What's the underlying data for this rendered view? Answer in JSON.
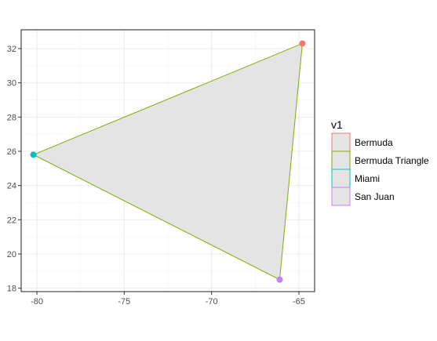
{
  "chart_data": {
    "type": "scatter",
    "title": "",
    "xlabel": "",
    "ylabel": "",
    "xlim": [
      -80.9,
      -64.1
    ],
    "ylim": [
      17.8,
      33.1
    ],
    "x_ticks": [
      -80,
      -75,
      -70,
      -65
    ],
    "x_tick_labels": [
      "-80",
      "-75",
      "-70",
      "-65"
    ],
    "y_ticks": [
      18,
      20,
      22,
      24,
      26,
      28,
      30,
      32
    ],
    "y_tick_labels": [
      "18",
      "20",
      "22",
      "24",
      "26",
      "28",
      "30",
      "32"
    ],
    "grid": true,
    "legend_position": "right",
    "legend_title": "v1",
    "points": [
      {
        "name": "Bermuda",
        "x": -64.8,
        "y": 32.3,
        "color": "#F8766D"
      },
      {
        "name": "Miami",
        "x": -80.2,
        "y": 25.8,
        "color": "#00BFC4"
      },
      {
        "name": "San Juan",
        "x": -66.1,
        "y": 18.5,
        "color": "#C77CFF"
      }
    ],
    "polygon": {
      "name": "Bermuda Triangle",
      "color": "#7CAE00",
      "fill": "#e4e4e4",
      "x": [
        -64.8,
        -80.2,
        -66.1,
        -64.8
      ],
      "y": [
        32.3,
        25.8,
        18.5,
        32.3
      ]
    },
    "legend": [
      {
        "label": "Bermuda",
        "color": "#F8766D"
      },
      {
        "label": "Bermuda Triangle",
        "color": "#7CAE00"
      },
      {
        "label": "Miami",
        "color": "#00BFC4"
      },
      {
        "label": "San Juan",
        "color": "#C77CFF"
      }
    ]
  }
}
